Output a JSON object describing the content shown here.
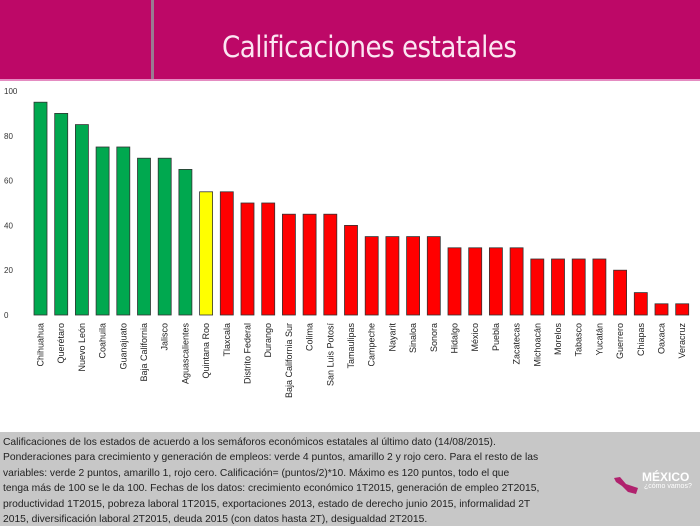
{
  "header": {
    "title": "Calificaciones estatales"
  },
  "colors": {
    "header": "#bd0867",
    "green": "#00a84f",
    "yellow": "#ffff00",
    "red": "#ff0000",
    "footer": "#c7c7c7"
  },
  "chart_data": {
    "type": "bar",
    "title": "",
    "xlabel": "",
    "ylabel": "",
    "ylim": [
      0,
      100
    ],
    "yticks": [
      0,
      20,
      40,
      60,
      80,
      100
    ],
    "grid": false,
    "categories": [
      "Chihuahua",
      "Querétaro",
      "Nuevo León",
      "Coahuila",
      "Guanajuato",
      "Baja California",
      "Jalisco",
      "Aguascalientes",
      "Quintana Roo",
      "Tlaxcala",
      "Distrito Federal",
      "Durango",
      "Baja California Sur",
      "Colima",
      "San Luis Potosí",
      "Tamaulipas",
      "Campeche",
      "Nayarit",
      "Sinaloa",
      "Sonora",
      "Hidalgo",
      "México",
      "Puebla",
      "Zacatecas",
      "Michoacán",
      "Morelos",
      "Tabasco",
      "Yucatán",
      "Guerrero",
      "Chiapas",
      "Oaxaca",
      "Veracruz"
    ],
    "values": [
      95,
      90,
      85,
      75,
      75,
      70,
      70,
      65,
      55,
      55,
      50,
      50,
      45,
      45,
      45,
      40,
      35,
      35,
      35,
      35,
      30,
      30,
      30,
      30,
      25,
      25,
      25,
      25,
      20,
      10,
      5,
      5
    ],
    "bar_colors": [
      "green",
      "green",
      "green",
      "green",
      "green",
      "green",
      "green",
      "green",
      "yellow",
      "red",
      "red",
      "red",
      "red",
      "red",
      "red",
      "red",
      "red",
      "red",
      "red",
      "red",
      "red",
      "red",
      "red",
      "red",
      "red",
      "red",
      "red",
      "red",
      "red",
      "red",
      "red",
      "red"
    ]
  },
  "footer": {
    "lines": [
      "Calificaciones de los estados de acuerdo a los semáforos económicos estatales al último dato (14/08/2015).",
      "Ponderaciones para crecimiento y generación de empleos: verde 4 puntos, amarillo 2 y rojo cero. Para el resto de las",
      "variables: verde 2 puntos, amarillo 1, rojo cero. Calificación= (puntos/2)*10. Máximo es 120 puntos, todo el que",
      "tenga más de 100 se le da 100. Fechas de los datos: crecimiento económico 1T2015, generación de empleo 2T2015,",
      "productividad 1T2015, pobreza laboral 1T2015, exportaciones 2013, estado de derecho junio 2015, informalidad 2T",
      "2015, diversificación laboral 2T2015, deuda 2015 (con datos hasta 2T), desigualdad 2T2015."
    ],
    "logo": {
      "name": "MÉXICO",
      "subtitle": "¿cómo vamos?"
    }
  }
}
